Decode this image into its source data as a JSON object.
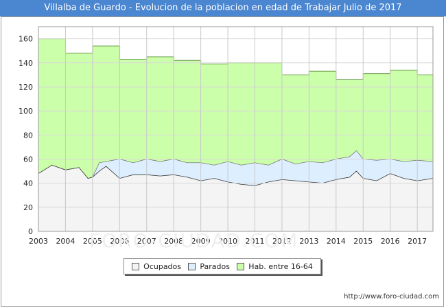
{
  "chart_data": {
    "type": "area",
    "title": "Villalba de Guardo - Evolucion de la poblacion en edad de Trabajar Julio de 2017",
    "xlabel": "",
    "ylabel": "",
    "xlim": [
      2003,
      2017.58
    ],
    "ylim": [
      0,
      170
    ],
    "yticks": [
      0,
      20,
      40,
      60,
      80,
      100,
      120,
      140,
      160
    ],
    "xticks": [
      2003,
      2004,
      2005,
      2006,
      2007,
      2008,
      2009,
      2010,
      2011,
      2012,
      2013,
      2014,
      2015,
      2016,
      2017
    ],
    "series": [
      {
        "name": "Hab. entre 16-64",
        "color": "#ccffaa",
        "line_color": "#669944",
        "step_values": [
          {
            "from": 2003.0,
            "to": 2004.0,
            "value": 160
          },
          {
            "from": 2004.0,
            "to": 2005.0,
            "value": 148
          },
          {
            "from": 2005.0,
            "to": 2006.0,
            "value": 154
          },
          {
            "from": 2006.0,
            "to": 2007.0,
            "value": 143
          },
          {
            "from": 2007.0,
            "to": 2008.0,
            "value": 145
          },
          {
            "from": 2008.0,
            "to": 2009.0,
            "value": 142
          },
          {
            "from": 2009.0,
            "to": 2010.0,
            "value": 139
          },
          {
            "from": 2010.0,
            "to": 2011.0,
            "value": 140
          },
          {
            "from": 2011.0,
            "to": 2012.0,
            "value": 140
          },
          {
            "from": 2012.0,
            "to": 2013.0,
            "value": 130
          },
          {
            "from": 2013.0,
            "to": 2014.0,
            "value": 133
          },
          {
            "from": 2014.0,
            "to": 2015.0,
            "value": 126
          },
          {
            "from": 2015.0,
            "to": 2016.0,
            "value": 131
          },
          {
            "from": 2016.0,
            "to": 2017.0,
            "value": 134
          },
          {
            "from": 2017.0,
            "to": 2017.58,
            "value": 130
          }
        ]
      },
      {
        "name": "Parados",
        "color": "#ddeeff",
        "line_color": "#777777",
        "x": [
          2003.0,
          2003.5,
          2004.0,
          2004.5,
          2004.83,
          2005.0,
          2005.25,
          2005.5,
          2006.0,
          2006.5,
          2007.0,
          2007.5,
          2008.0,
          2008.5,
          2009.0,
          2009.5,
          2010.0,
          2010.5,
          2011.0,
          2011.5,
          2012.0,
          2012.5,
          2013.0,
          2013.5,
          2014.0,
          2014.5,
          2014.75,
          2015.0,
          2015.5,
          2016.0,
          2016.5,
          2017.0,
          2017.58
        ],
        "values": [
          48,
          55,
          51,
          53,
          44,
          45,
          57,
          58,
          60,
          57,
          60,
          58,
          60,
          57,
          57,
          55,
          58,
          55,
          57,
          55,
          60,
          56,
          58,
          57,
          60,
          62,
          67,
          60,
          59,
          60,
          58,
          59,
          58
        ]
      },
      {
        "name": "Ocupados",
        "color": "#f4f4f4",
        "line_color": "#333333",
        "x": [
          2003.0,
          2003.5,
          2004.0,
          2004.5,
          2004.83,
          2005.0,
          2005.25,
          2005.5,
          2006.0,
          2006.5,
          2007.0,
          2007.5,
          2008.0,
          2008.5,
          2009.0,
          2009.5,
          2010.0,
          2010.5,
          2011.0,
          2011.5,
          2012.0,
          2012.5,
          2013.0,
          2013.5,
          2014.0,
          2014.5,
          2014.75,
          2015.0,
          2015.5,
          2016.0,
          2016.5,
          2017.0,
          2017.58
        ],
        "values": [
          48,
          55,
          51,
          53,
          44,
          45,
          50,
          54,
          44,
          47,
          47,
          46,
          47,
          45,
          42,
          44,
          41,
          39,
          38,
          41,
          43,
          42,
          41,
          40,
          43,
          45,
          50,
          44,
          42,
          48,
          44,
          42,
          44
        ]
      }
    ],
    "legend": [
      "Ocupados",
      "Parados",
      "Hab. entre 16-64"
    ],
    "legend_position": "bottom-center"
  },
  "legend_colors": {
    "ocupados": "#f4f4f4",
    "parados": "#ddeeff",
    "hab": "#ccffaa"
  },
  "footer": {
    "url": "http://www.foro-ciudad.com"
  },
  "watermark": "FORO-CIUDAD.COM"
}
